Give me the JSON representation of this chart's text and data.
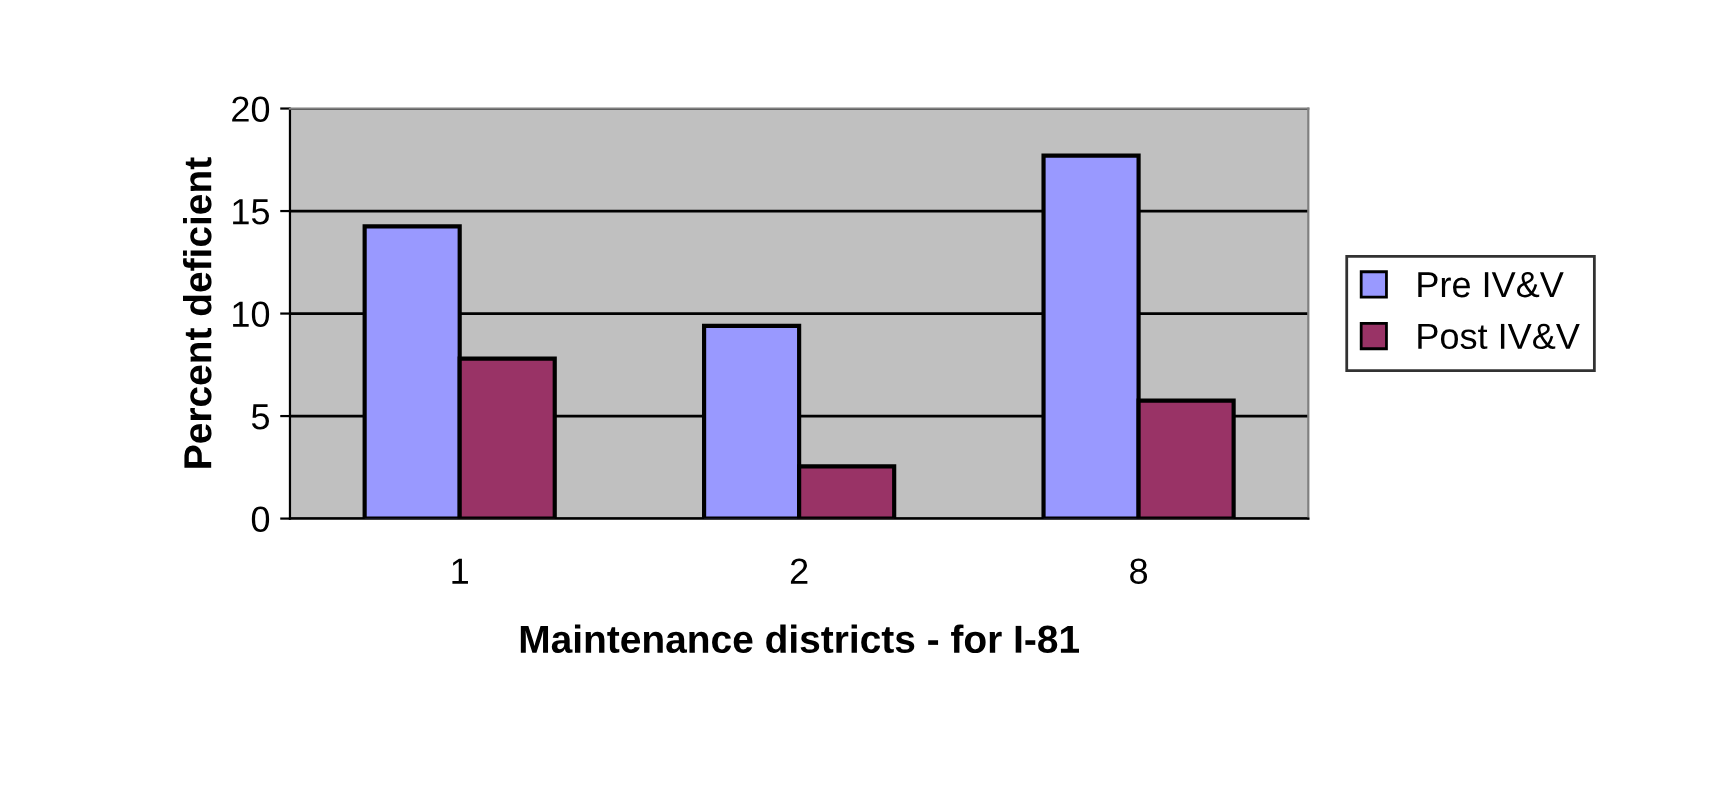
{
  "chart_data": {
    "type": "bar",
    "xlabel": "Maintenance districts - for I-81",
    "ylabel": "Percent deficient",
    "categories": [
      "1",
      "2",
      "8"
    ],
    "series": [
      {
        "name": "Pre IV&V",
        "color": "#9999ff",
        "values": [
          14.25,
          9.4,
          17.7
        ]
      },
      {
        "name": "Post IV&V",
        "color": "#993366",
        "values": [
          7.8,
          2.55,
          5.75
        ]
      }
    ],
    "ylim": [
      0,
      20
    ],
    "yticks": [
      0,
      5,
      10,
      15,
      20
    ],
    "grid": "y",
    "legend": "right"
  }
}
